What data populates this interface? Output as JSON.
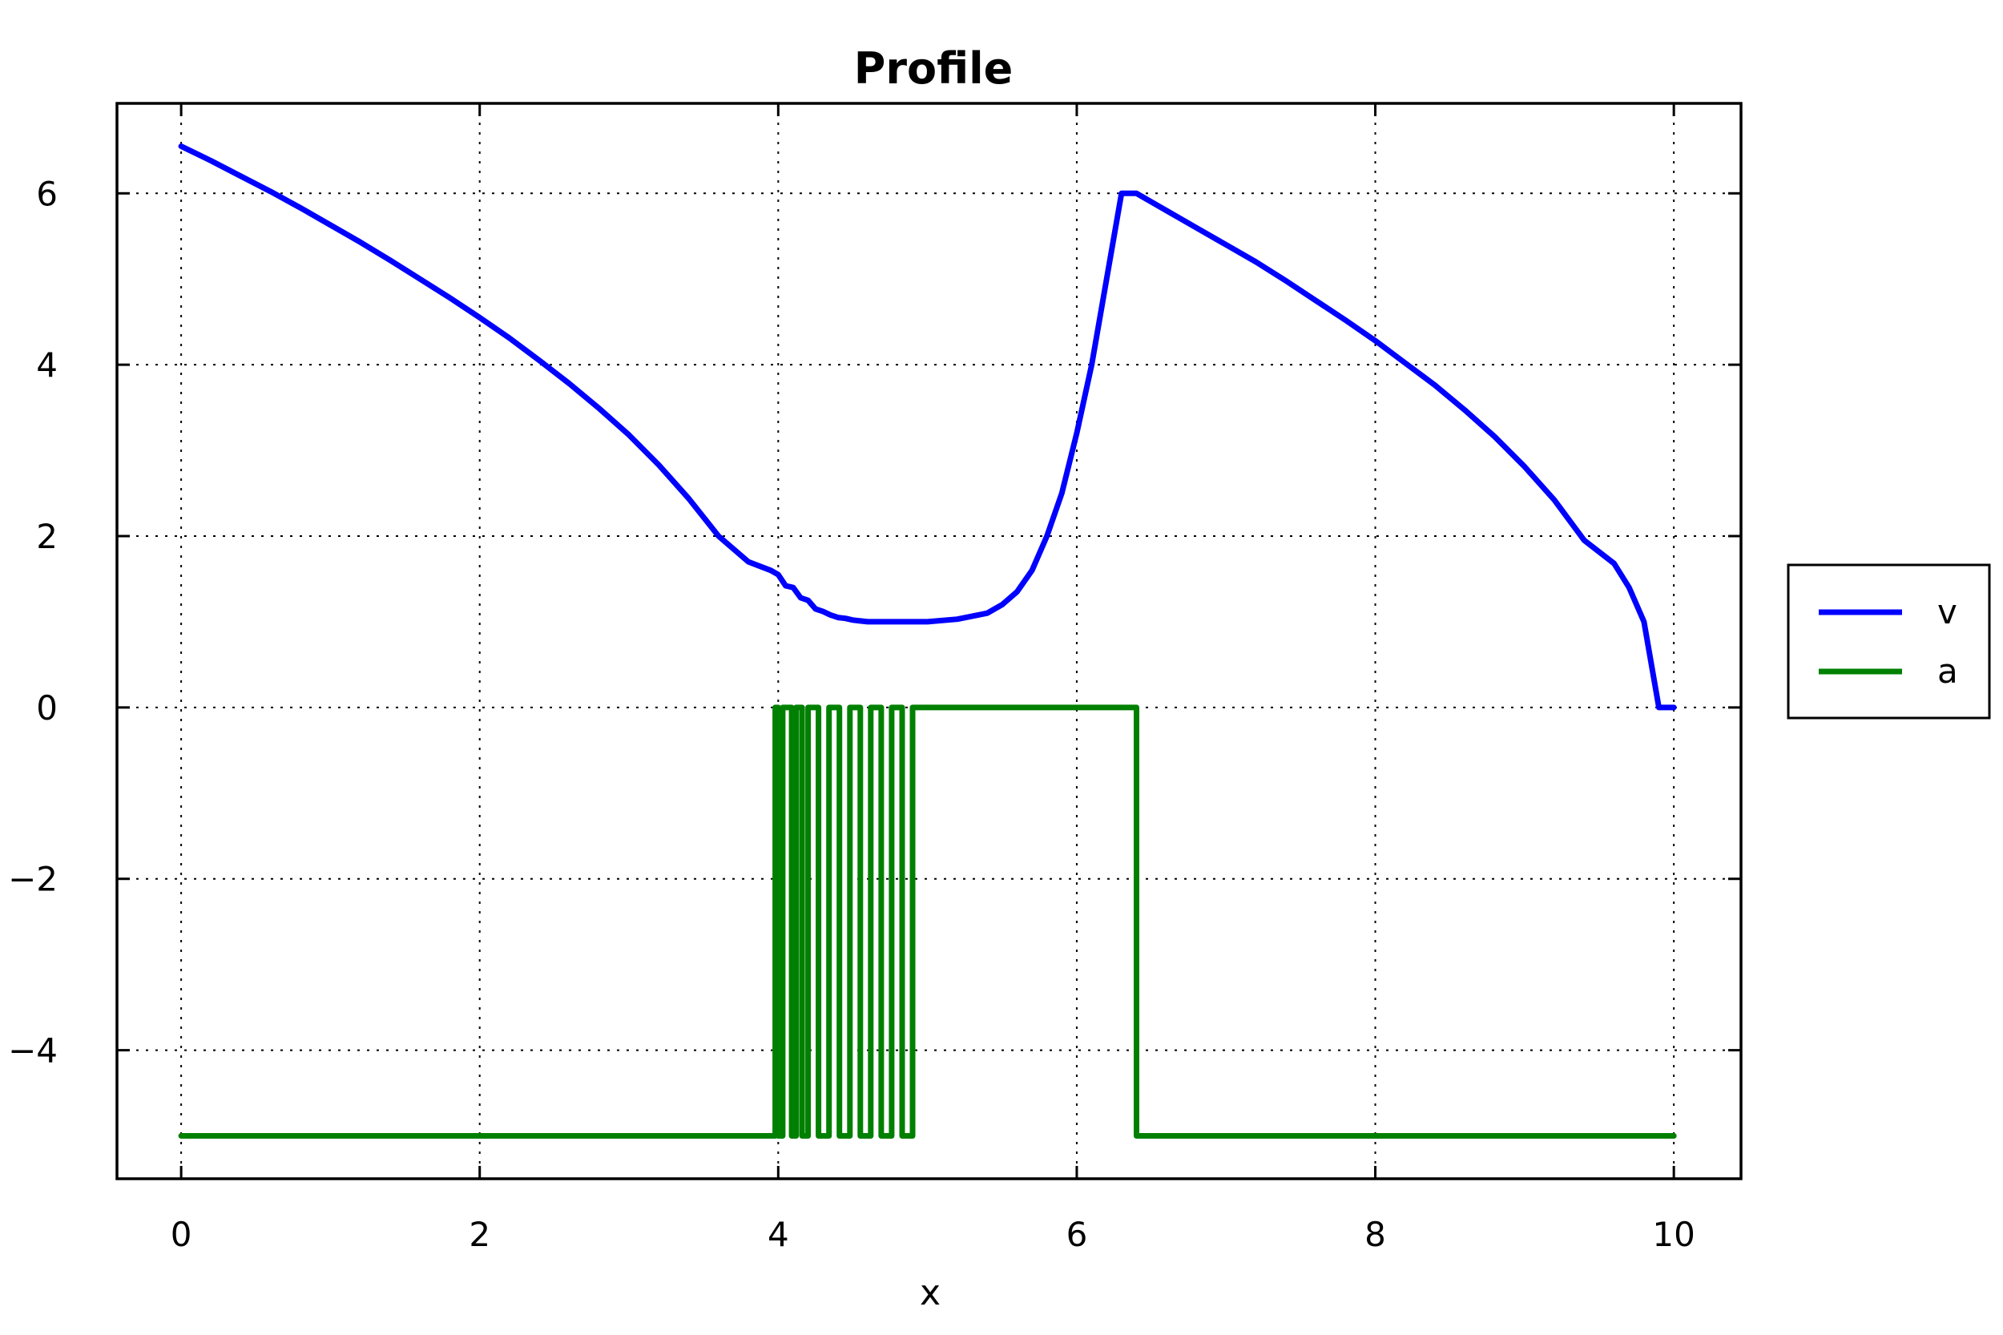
{
  "chart_data": {
    "type": "line",
    "title": "Profile",
    "xlabel": "x",
    "ylabel": "",
    "xlim": [
      -0.43,
      10.45
    ],
    "ylim": [
      -5.5,
      7.05
    ],
    "xticks": [
      0,
      2,
      4,
      6,
      8,
      10
    ],
    "yticks": [
      -4,
      -2,
      0,
      2,
      4,
      6
    ],
    "xtick_labels": [
      "0",
      "2",
      "4",
      "6",
      "8",
      "10"
    ],
    "ytick_labels": [
      "−4",
      "−2",
      "0",
      "2",
      "4",
      "6"
    ],
    "grid": true,
    "legend_position": "right",
    "series": [
      {
        "name": "v",
        "color": "#0000ff",
        "x": [
          0,
          0.2,
          0.4,
          0.6,
          0.8,
          1.0,
          1.2,
          1.4,
          1.6,
          1.8,
          2.0,
          2.2,
          2.4,
          2.6,
          2.8,
          3.0,
          3.2,
          3.4,
          3.6,
          3.8,
          3.95,
          4.0,
          4.05,
          4.1,
          4.15,
          4.2,
          4.25,
          4.3,
          4.35,
          4.4,
          4.45,
          4.5,
          4.55,
          4.6,
          4.7,
          4.8,
          5.0,
          5.2,
          5.4,
          5.5,
          5.6,
          5.7,
          5.8,
          5.9,
          6.0,
          6.1,
          6.2,
          6.3,
          6.4,
          6.6,
          6.8,
          7.0,
          7.2,
          7.4,
          7.6,
          7.8,
          8.0,
          8.2,
          8.4,
          8.6,
          8.8,
          9.0,
          9.2,
          9.4,
          9.6,
          9.7,
          9.8,
          9.9,
          10.0
        ],
        "y": [
          6.55,
          6.38,
          6.2,
          6.02,
          5.83,
          5.63,
          5.43,
          5.22,
          5.0,
          4.78,
          4.55,
          4.31,
          4.05,
          3.78,
          3.49,
          3.18,
          2.83,
          2.44,
          2.0,
          1.7,
          1.6,
          1.55,
          1.42,
          1.4,
          1.28,
          1.25,
          1.15,
          1.12,
          1.08,
          1.05,
          1.04,
          1.02,
          1.01,
          1.0,
          1.0,
          1.0,
          1.0,
          1.03,
          1.1,
          1.2,
          1.35,
          1.6,
          2.0,
          2.5,
          3.2,
          4.0,
          5.0,
          6.0,
          6.0,
          5.8,
          5.6,
          5.4,
          5.2,
          4.98,
          4.75,
          4.52,
          4.28,
          4.02,
          3.76,
          3.47,
          3.16,
          2.81,
          2.42,
          1.95,
          1.68,
          1.4,
          1.0,
          0.0,
          0.0
        ]
      },
      {
        "name": "a",
        "color": "#008000",
        "x": [
          0,
          3.98,
          3.98,
          4.0,
          4.0,
          4.03,
          4.03,
          4.09,
          4.09,
          4.12,
          4.12,
          4.16,
          4.16,
          4.2,
          4.2,
          4.27,
          4.27,
          4.34,
          4.34,
          4.41,
          4.41,
          4.48,
          4.48,
          4.55,
          4.55,
          4.62,
          4.62,
          4.69,
          4.69,
          4.76,
          4.76,
          4.83,
          4.83,
          4.9,
          4.9,
          6.4,
          6.4,
          10.0
        ],
        "y": [
          -5,
          -5,
          0,
          0,
          -5,
          -5,
          0,
          0,
          -5,
          -5,
          0,
          0,
          -5,
          -5,
          0,
          0,
          -5,
          -5,
          0,
          0,
          -5,
          -5,
          0,
          0,
          -5,
          -5,
          0,
          0,
          -5,
          -5,
          0,
          0,
          -5,
          -5,
          0,
          0,
          -5,
          -5
        ]
      }
    ]
  }
}
